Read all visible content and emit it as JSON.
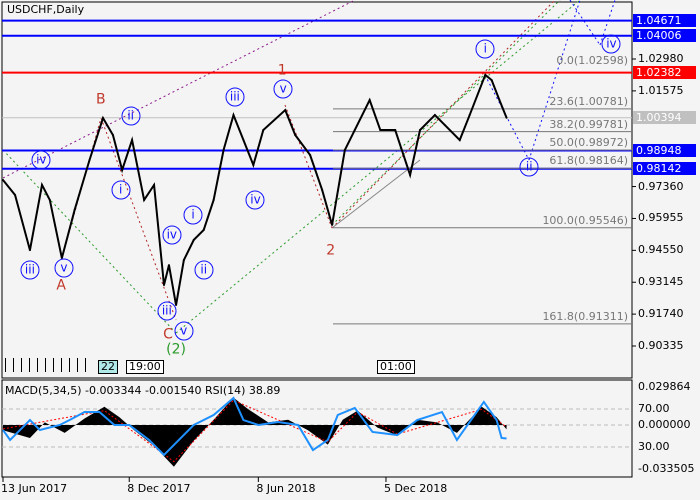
{
  "header": {
    "title": "USDCHF,Daily"
  },
  "chart_data": [
    {
      "type": "line",
      "name": "USDCHF,Daily",
      "ylim": [
        0.8975,
        1.056
      ],
      "xlim": [
        "2017-06-10",
        "2019-11-20"
      ],
      "y_ticks": [
        "1.02980",
        "1.01575",
        "0.97360",
        "0.95955",
        "0.94550",
        "0.93145",
        "0.91740",
        "0.90335"
      ],
      "x_ticks": [
        {
          "date": "2017-06-13",
          "label": "13 Jun 2017"
        },
        {
          "date": "2017-12-08",
          "label": "8 Dec 2017"
        },
        {
          "date": "2018-06-08",
          "label": "8 Jun 2018"
        },
        {
          "date": "2018-12-05",
          "label": "5 Dec 2018"
        }
      ],
      "series": [
        {
          "values": [
            [
              "2017-06-13",
              0.9765
            ],
            [
              "2017-06-30",
              0.9699
            ],
            [
              "2017-07-21",
              0.9456
            ],
            [
              "2017-08-07",
              0.9743
            ],
            [
              "2017-08-18",
              0.9677
            ],
            [
              "2017-09-04",
              0.9421
            ],
            [
              "2017-09-22",
              0.9633
            ],
            [
              "2017-10-13",
              0.9853
            ],
            [
              "2017-11-01",
              1.0038
            ],
            [
              "2017-11-15",
              0.9963
            ],
            [
              "2017-11-28",
              0.9809
            ],
            [
              "2017-12-12",
              0.9941
            ],
            [
              "2017-12-29",
              0.9677
            ],
            [
              "2018-01-12",
              0.9743
            ],
            [
              "2018-01-26",
              0.9302
            ],
            [
              "2018-02-02",
              0.939
            ],
            [
              "2018-02-12",
              0.9214
            ],
            [
              "2018-02-23",
              0.9412
            ],
            [
              "2018-03-09",
              0.9501
            ],
            [
              "2018-03-23",
              0.9545
            ],
            [
              "2018-04-06",
              0.9677
            ],
            [
              "2018-04-20",
              0.9897
            ],
            [
              "2018-05-04",
              1.0051
            ],
            [
              "2018-05-18",
              0.9941
            ],
            [
              "2018-06-01",
              0.9831
            ],
            [
              "2018-06-15",
              0.9985
            ],
            [
              "2018-07-16",
              1.0073
            ],
            [
              "2018-07-30",
              0.9963
            ],
            [
              "2018-08-20",
              0.9875
            ],
            [
              "2018-09-06",
              0.9721
            ],
            [
              "2018-09-20",
              0.9567
            ],
            [
              "2018-10-08",
              0.9897
            ],
            [
              "2018-10-22",
              0.9985
            ],
            [
              "2018-11-12",
              1.0117
            ],
            [
              "2018-11-27",
              0.9985
            ],
            [
              "2018-12-18",
              0.9985
            ],
            [
              "2019-01-08",
              0.9787
            ],
            [
              "2019-01-22",
              0.9985
            ],
            [
              "2019-02-12",
              1.0051
            ],
            [
              "2019-02-26",
              1.0007
            ],
            [
              "2019-03-19",
              0.9941
            ],
            [
              "2019-04-02",
              1.0051
            ],
            [
              "2019-04-24",
              1.0228
            ],
            [
              "2019-05-03",
              1.0205
            ],
            [
              "2019-05-14",
              1.0117
            ],
            [
              "2019-05-24",
              1.00394
            ]
          ]
        }
      ],
      "price_lines": [
        {
          "value": "1.04671",
          "color": "#0000ff"
        },
        {
          "value": "1.04006",
          "color": "#0000ff"
        },
        {
          "value": "1.02382",
          "color": "#ff0000"
        },
        {
          "value": "1.00394",
          "color": "#c0c0c0"
        },
        {
          "value": "0.98948",
          "color": "#0000ff"
        },
        {
          "value": "0.98142",
          "color": "#0000ff"
        }
      ],
      "fibonacci": [
        {
          "label": "0.0(1.02598)",
          "value": 1.02598
        },
        {
          "label": "23.6(1.00781)",
          "value": 1.00781
        },
        {
          "label": "38.2(0.99781)",
          "value": 0.99781
        },
        {
          "label": "50.0(0.98972)",
          "value": 0.98972
        },
        {
          "label": "61.8(0.98164)",
          "value": 0.98164
        },
        {
          "label": "100.0(0.95546)",
          "value": 0.95546
        },
        {
          "label": "161.8(0.91311)",
          "value": 0.91311
        }
      ],
      "annotations": [
        {
          "text": "iv",
          "date": "2017-08-06",
          "price": 0.9853,
          "style": "circ"
        },
        {
          "text": "iii",
          "date": "2017-07-21",
          "price": 0.9368,
          "style": "circ"
        },
        {
          "text": "v",
          "date": "2017-09-07",
          "price": 0.9377,
          "style": "circ"
        },
        {
          "text": "A",
          "date": "2017-09-05",
          "price": 0.9338,
          "style": "red"
        },
        {
          "text": "B",
          "date": "2017-10-29",
          "price": 1.0117,
          "style": "red"
        },
        {
          "text": "ii",
          "date": "2017-12-10",
          "price": 1.0047,
          "style": "circ"
        },
        {
          "text": "i",
          "date": "2017-11-26",
          "price": 0.9721,
          "style": "circ"
        },
        {
          "text": "iii",
          "date": "2018-05-06",
          "price": 1.0131,
          "style": "circ"
        },
        {
          "text": "v",
          "date": "2018-07-13",
          "price": 1.0166,
          "style": "circ"
        },
        {
          "text": "1",
          "date": "2018-07-12",
          "price": 1.0223,
          "style": "red"
        },
        {
          "text": "iv",
          "date": "2018-06-04",
          "price": 0.9677,
          "style": "circ"
        },
        {
          "text": "i",
          "date": "2018-03-08",
          "price": 0.9611,
          "style": "circ"
        },
        {
          "text": "iv",
          "date": "2018-02-06",
          "price": 0.9523,
          "style": "circ"
        },
        {
          "text": "ii",
          "date": "2018-03-23",
          "price": 0.9368,
          "style": "circ"
        },
        {
          "text": "iii",
          "date": "2018-01-30",
          "price": 0.9188,
          "style": "circ"
        },
        {
          "text": "v",
          "date": "2018-02-12",
          "price": 0.9139,
          "style": "circ"
        },
        {
          "text": "C",
          "date": "2018-02-13",
          "price": 0.9091,
          "style": "red"
        },
        {
          "text": "(2)",
          "date": "2018-02-12",
          "price": 0.9016,
          "style": "green"
        },
        {
          "text": "2",
          "date": "2018-09-18",
          "price": 0.9452,
          "style": "red"
        },
        {
          "text": "i",
          "date": "2019-04-24",
          "price": 1.0342,
          "style": "circ"
        },
        {
          "text": "ii",
          "date": "2019-06-25",
          "price": 0.9822,
          "style": "circ"
        },
        {
          "text": "iv",
          "date": "2019-10-04",
          "price": 1.0324,
          "style": "circ"
        }
      ]
    },
    {
      "type": "line",
      "title": "MACD(5,34,5) -0.003344 -0.001540 RSI(14) 38.89",
      "y_ticks_macd": [
        "0.029864",
        "0.000000",
        "-0.033505"
      ],
      "y_ticks_rsi": [
        "70.00",
        "30.00"
      ],
      "ylim_macd": [
        -0.033505,
        0.029864
      ],
      "rsi_levels": [
        70,
        30
      ],
      "series": [
        {
          "name": "RSI(14)",
          "color": "#1e90ff",
          "values": [
            [
              "2017-06-13",
              47.9
            ],
            [
              "2017-06-23",
              37.4
            ],
            [
              "2017-07-21",
              58.4
            ],
            [
              "2017-08-04",
              47.9
            ],
            [
              "2017-09-01",
              53.2
            ],
            [
              "2017-09-15",
              58.4
            ],
            [
              "2017-10-06",
              66.8
            ],
            [
              "2017-10-27",
              66.8
            ],
            [
              "2017-11-17",
              53.2
            ],
            [
              "2017-12-08",
              53.2
            ],
            [
              "2018-01-05",
              37.4
            ],
            [
              "2018-01-26",
              21.6
            ],
            [
              "2018-02-16",
              37.4
            ],
            [
              "2018-03-09",
              53.2
            ],
            [
              "2018-04-06",
              63.7
            ],
            [
              "2018-05-04",
              81.6
            ],
            [
              "2018-05-18",
              58.4
            ],
            [
              "2018-06-08",
              53.2
            ],
            [
              "2018-07-06",
              56.3
            ],
            [
              "2018-08-03",
              53.2
            ],
            [
              "2018-08-24",
              26.8
            ],
            [
              "2018-09-14",
              37.4
            ],
            [
              "2018-09-28",
              63.7
            ],
            [
              "2018-10-22",
              71.1
            ],
            [
              "2018-11-16",
              45.8
            ],
            [
              "2018-12-21",
              42.6
            ],
            [
              "2019-01-18",
              58.4
            ],
            [
              "2019-02-22",
              66.8
            ],
            [
              "2019-03-15",
              37.4
            ],
            [
              "2019-04-22",
              77.4
            ],
            [
              "2019-05-10",
              58.4
            ],
            [
              "2019-05-17",
              39.5
            ],
            [
              "2019-05-24",
              38.89
            ]
          ]
        },
        {
          "name": "MACD(5,34,5)",
          "color": "#000000",
          "values": [
            [
              "2017-06-13",
              -0.004
            ],
            [
              "2017-07-21",
              -0.01
            ],
            [
              "2017-08-11",
              0.002
            ],
            [
              "2017-09-08",
              -0.006
            ],
            [
              "2017-10-06",
              0.005
            ],
            [
              "2017-11-03",
              0.014
            ],
            [
              "2017-11-24",
              0.006
            ],
            [
              "2017-12-15",
              -0.004
            ],
            [
              "2018-01-12",
              -0.016
            ],
            [
              "2018-02-09",
              -0.032
            ],
            [
              "2018-03-09",
              -0.012
            ],
            [
              "2018-04-06",
              0.004
            ],
            [
              "2018-05-04",
              0.021
            ],
            [
              "2018-05-25",
              0.012
            ],
            [
              "2018-06-22",
              0.002
            ],
            [
              "2018-07-20",
              0.004
            ],
            [
              "2018-08-17",
              -0.004
            ],
            [
              "2018-09-14",
              -0.015
            ],
            [
              "2018-10-05",
              0.004
            ],
            [
              "2018-10-26",
              0.011
            ],
            [
              "2018-11-23",
              -0.002
            ],
            [
              "2018-12-21",
              -0.008
            ],
            [
              "2019-01-18",
              0.004
            ],
            [
              "2019-02-15",
              0.002
            ],
            [
              "2019-03-15",
              -0.006
            ],
            [
              "2019-04-19",
              0.014
            ],
            [
              "2019-05-10",
              0.006
            ],
            [
              "2019-05-24",
              -0.003344
            ]
          ]
        },
        {
          "name": "signal",
          "color": "#ff0000",
          "values": [
            [
              "2017-06-13",
              -0.003
            ],
            [
              "2017-11-03",
              0.011
            ],
            [
              "2018-02-09",
              -0.028
            ],
            [
              "2018-05-04",
              0.019
            ],
            [
              "2018-09-14",
              -0.013
            ],
            [
              "2018-10-26",
              0.01
            ],
            [
              "2018-12-21",
              -0.007
            ],
            [
              "2019-04-19",
              0.012
            ],
            [
              "2019-05-24",
              -0.00154
            ]
          ]
        }
      ]
    }
  ],
  "time_markers": {
    "highlight": "22",
    "left_time": "19:00",
    "right_time": "01:00"
  },
  "colors": {
    "background": "#f4f4f4",
    "price": "#000000",
    "support": "#0000ff",
    "resistance": "#ff0000",
    "bid": "#c0c0c0",
    "rsi": "#1e90ff"
  }
}
